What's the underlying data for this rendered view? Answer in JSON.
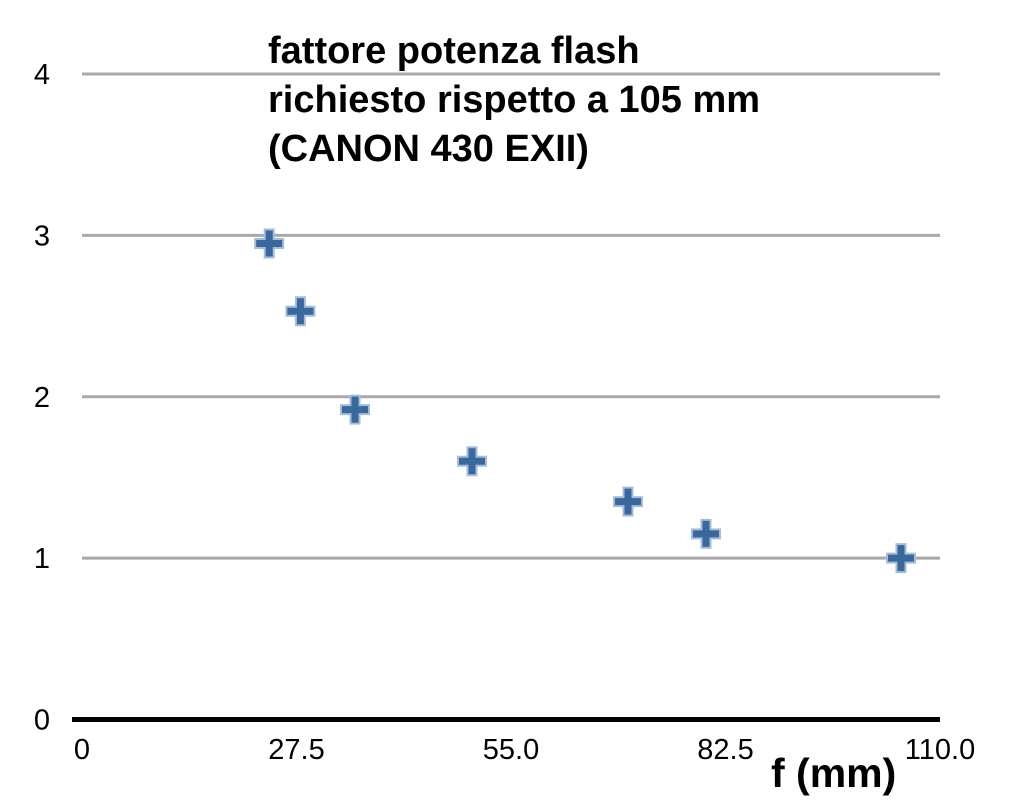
{
  "chart_data": {
    "type": "scatter",
    "title_lines": [
      "fattore potenza flash",
      "richiesto rispetto a 105 mm",
      "(CANON 430 EXII)"
    ],
    "xlabel": "f (mm)",
    "ylabel": "",
    "xlim": [
      0,
      110
    ],
    "ylim": [
      0,
      4
    ],
    "x_ticks": [
      {
        "value": 0,
        "label": "0"
      },
      {
        "value": 27.5,
        "label": "27.5"
      },
      {
        "value": 55,
        "label": "55.0"
      },
      {
        "value": 82.5,
        "label": "82.5"
      },
      {
        "value": 110,
        "label": "110.0"
      }
    ],
    "y_ticks": [
      {
        "value": 0,
        "label": "0"
      },
      {
        "value": 1,
        "label": "1"
      },
      {
        "value": 2,
        "label": "2"
      },
      {
        "value": 3,
        "label": "3"
      },
      {
        "value": 4,
        "label": "4"
      }
    ],
    "points": [
      {
        "x": 24,
        "y": 2.95
      },
      {
        "x": 28,
        "y": 2.53
      },
      {
        "x": 35,
        "y": 1.92
      },
      {
        "x": 50,
        "y": 1.6
      },
      {
        "x": 70,
        "y": 1.35
      },
      {
        "x": 80,
        "y": 1.15
      },
      {
        "x": 105,
        "y": 1.0
      }
    ],
    "marker": "plus",
    "legend": "none",
    "grid": "horizontal-only",
    "colors": {
      "marker_fill": "#38689e",
      "marker_stroke": "#a6bdd8",
      "gridline": "#a9a9a9",
      "axis": "#000000",
      "text": "#000000",
      "background": "#ffffff"
    }
  }
}
